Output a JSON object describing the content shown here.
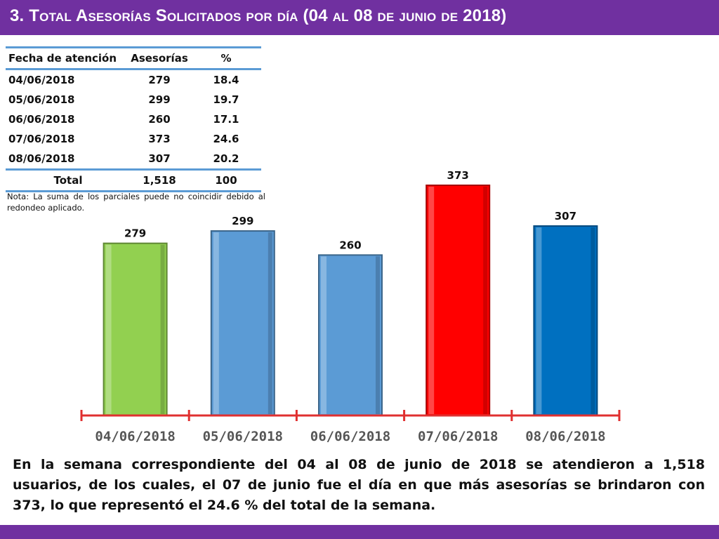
{
  "title": "3.  Total Asesorías Solicitados por día  (04 al 08 de junio de 2018)",
  "table": {
    "headers": [
      "Fecha de atención",
      "Asesorías",
      "%"
    ],
    "rows": [
      [
        "04/06/2018",
        "279",
        "18.4"
      ],
      [
        "05/06/2018",
        "299",
        "19.7"
      ],
      [
        "06/06/2018",
        "260",
        "17.1"
      ],
      [
        "07/06/2018",
        "373",
        "24.6"
      ],
      [
        "08/06/2018",
        "307",
        "20.2"
      ]
    ],
    "total": [
      "Total",
      "1,518",
      "100"
    ]
  },
  "note": "Nota: La suma de los parciales puede no coincidir debido al redondeo aplicado.",
  "chart_data": {
    "type": "bar",
    "categories": [
      "04/06/2018",
      "05/06/2018",
      "06/06/2018",
      "07/06/2018",
      "08/06/2018"
    ],
    "values": [
      279,
      299,
      260,
      373,
      307
    ],
    "data_labels": [
      "279",
      "299",
      "260",
      "373",
      "307"
    ],
    "colors": [
      "#92d050",
      "#5b9bd5",
      "#5b9bd5",
      "#ff0000",
      "#0070c0"
    ],
    "ylim": [
      0,
      373
    ],
    "grid": false,
    "axis_color": "#e03030",
    "title": "",
    "xlabel": "",
    "ylabel": ""
  },
  "summary": "En la semana correspondiente del 04 al 08 de junio de 2018 se atendieron a 1,518 usuarios, de los cuales, el 07 de junio fue el día en que más asesorías se brindaron con 373, lo que representó el 24.6 % del total de la semana.",
  "colors": {
    "banner": "#7030a0",
    "table_rule": "#5b9bd5"
  }
}
